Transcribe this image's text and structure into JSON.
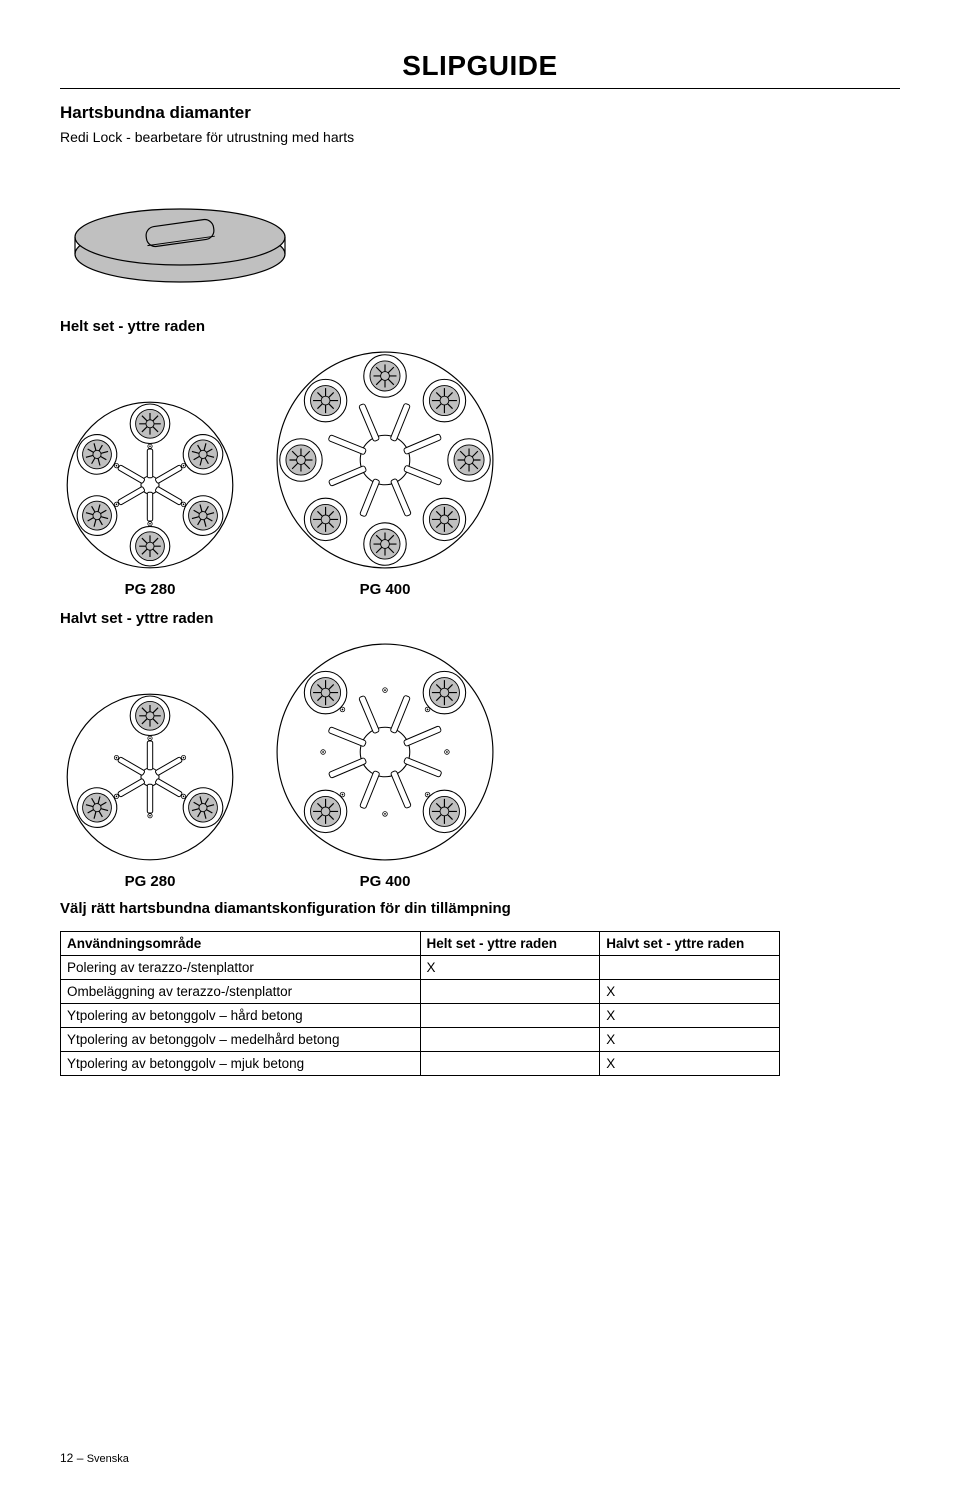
{
  "title": "SLIPGUIDE",
  "section_heading": "Hartsbundna diamanter",
  "section_sub": "Redi Lock - bearbetare för utrustning med harts",
  "full_set_label": "Helt set - yttre raden",
  "half_set_label": "Halvt set - yttre raden",
  "pg280": "PG 280",
  "pg400": "PG 400",
  "choose_text": "Välj rätt hartsbundna diamantskonfiguration för din tillämpning",
  "table": {
    "columns": [
      "Användningsområde",
      "Helt set - yttre raden",
      "Halvt set - yttre raden"
    ],
    "col_widths": [
      "50%",
      "25%",
      "25%"
    ],
    "rows": [
      [
        "Polering av terazzo-/stenplattor",
        "X",
        ""
      ],
      [
        "Ombeläggning av terazzo-/stenplattor",
        "",
        "X"
      ],
      [
        "Ytpolering av betonggolv – hård betong",
        "",
        "X"
      ],
      [
        "Ytpolering av betonggolv – medelhård betong",
        "",
        "X"
      ],
      [
        "Ytpolering av betonggolv – mjuk betong",
        "",
        "X"
      ]
    ]
  },
  "footer": {
    "page_num": "12",
    "dash": " – ",
    "lang": "Svenska"
  },
  "style": {
    "disc_grey": "#c0c0c0",
    "stroke": "#000000",
    "bg": "#ffffff"
  }
}
